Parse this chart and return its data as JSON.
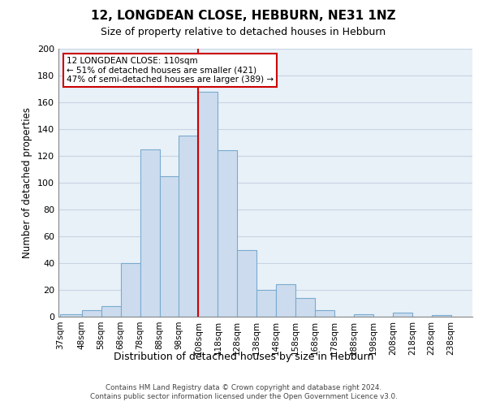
{
  "title": "12, LONGDEAN CLOSE, HEBBURN, NE31 1NZ",
  "subtitle": "Size of property relative to detached houses in Hebburn",
  "xlabel": "Distribution of detached houses by size in Hebburn",
  "ylabel": "Number of detached properties",
  "bin_labels": [
    "37sqm",
    "48sqm",
    "58sqm",
    "68sqm",
    "78sqm",
    "88sqm",
    "98sqm",
    "108sqm",
    "118sqm",
    "128sqm",
    "138sqm",
    "148sqm",
    "158sqm",
    "168sqm",
    "178sqm",
    "188sqm",
    "198sqm",
    "208sqm",
    "218sqm",
    "228sqm",
    "238sqm"
  ],
  "bar_values": [
    2,
    5,
    8,
    40,
    125,
    105,
    135,
    168,
    124,
    50,
    20,
    24,
    14,
    5,
    0,
    2,
    0,
    3,
    0,
    1
  ],
  "bin_edges": [
    37,
    48,
    58,
    68,
    78,
    88,
    98,
    108,
    118,
    128,
    138,
    148,
    158,
    168,
    178,
    188,
    198,
    208,
    218,
    228,
    238
  ],
  "bar_color": "#ccdcee",
  "bar_edge_color": "#7aaacf",
  "vline_x": 108,
  "vline_color": "#cc0000",
  "ylim": [
    0,
    200
  ],
  "yticks": [
    0,
    20,
    40,
    60,
    80,
    100,
    120,
    140,
    160,
    180,
    200
  ],
  "annotation_title": "12 LONGDEAN CLOSE: 110sqm",
  "annotation_line1": "← 51% of detached houses are smaller (421)",
  "annotation_line2": "47% of semi-detached houses are larger (389) →",
  "annotation_box_color": "#ffffff",
  "annotation_box_edge": "#cc0000",
  "footer1": "Contains HM Land Registry data © Crown copyright and database right 2024.",
  "footer2": "Contains public sector information licensed under the Open Government Licence v3.0.",
  "background_color": "#ffffff",
  "plot_bg_color": "#e8f0f8",
  "grid_color": "#c8d4e4"
}
